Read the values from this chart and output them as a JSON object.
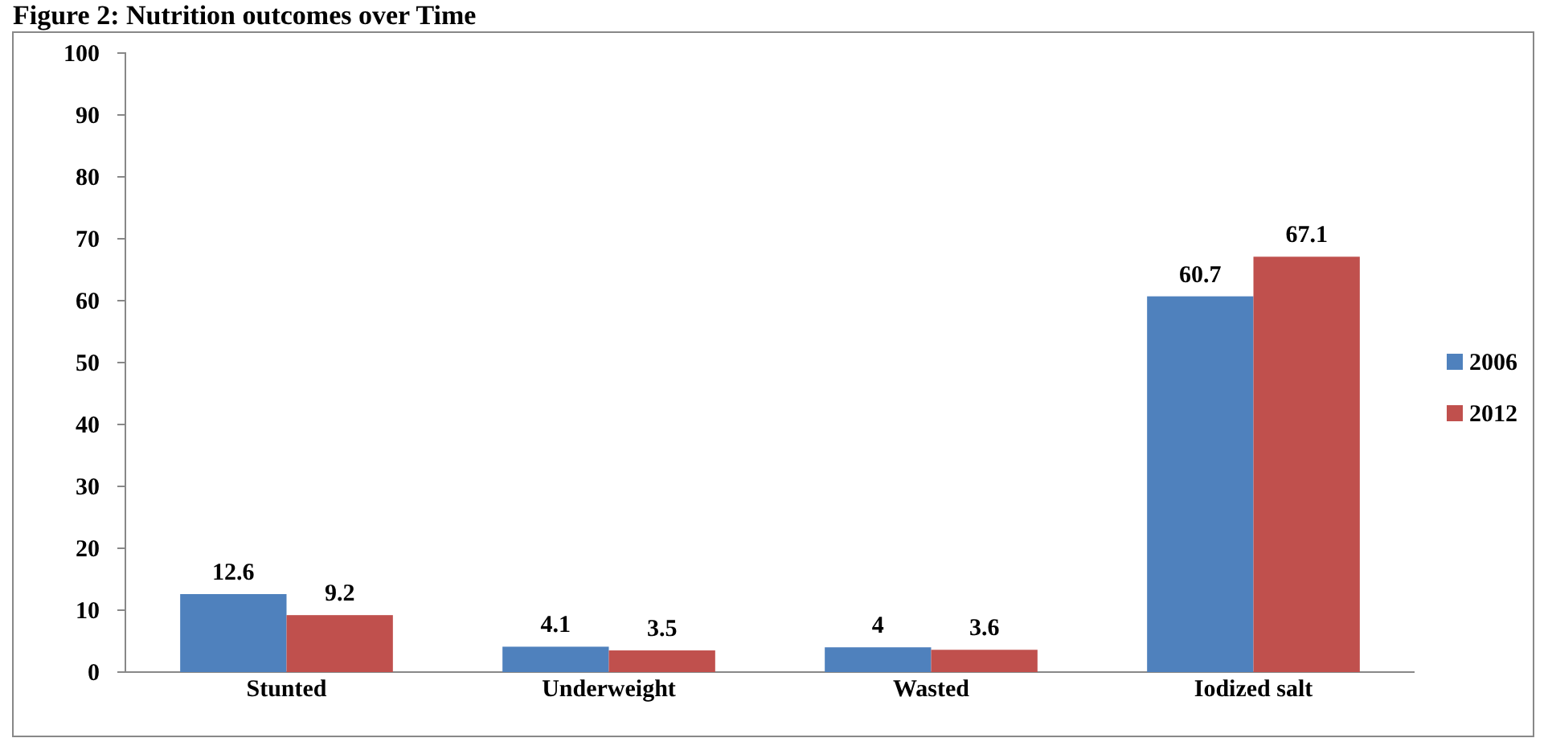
{
  "chart_data": {
    "type": "bar",
    "title": "Figure 2: Nutrition outcomes over Time",
    "categories": [
      "Stunted",
      "Underweight",
      "Wasted",
      "Iodized salt"
    ],
    "series": [
      {
        "name": "2006",
        "color": "#4f81bd",
        "values": [
          12.6,
          4.1,
          4,
          60.7
        ]
      },
      {
        "name": "2012",
        "color": "#c0504d",
        "values": [
          9.2,
          3.5,
          3.6,
          67.1
        ]
      }
    ],
    "ylim": [
      0,
      100
    ],
    "yticks": [
      0,
      10,
      20,
      30,
      40,
      50,
      60,
      70,
      80,
      90,
      100
    ],
    "data_labels": true,
    "legend": "right"
  }
}
